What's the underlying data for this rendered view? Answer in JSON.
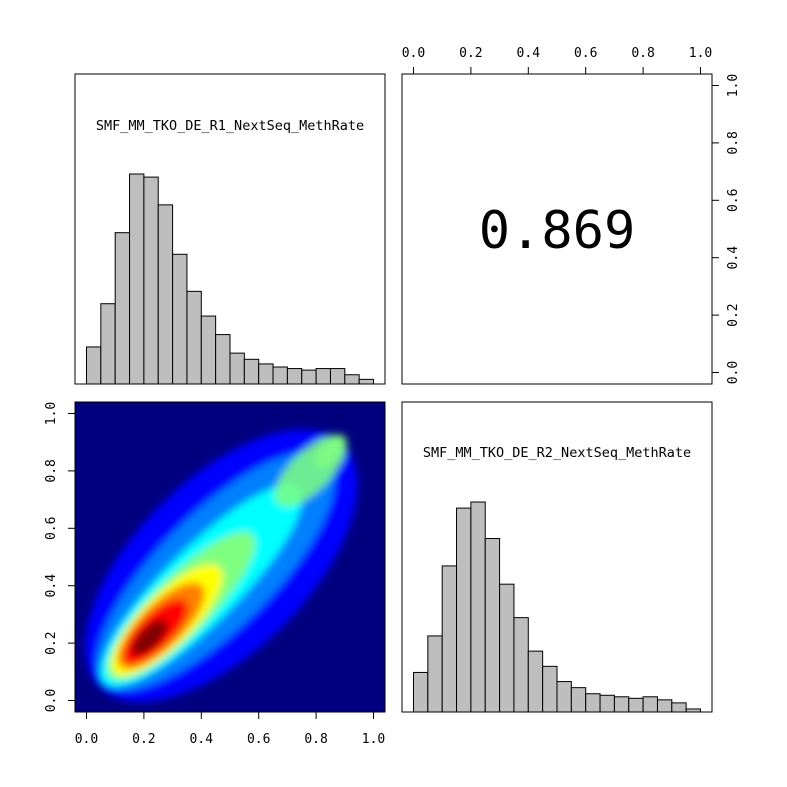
{
  "chart_data": [
    {
      "type": "histogram",
      "panel": "top-left",
      "label": "SMF_MM_TKO_DE_R1_NextSeq_MethRate",
      "bins": [
        0.0,
        0.05,
        0.1,
        0.15,
        0.2,
        0.25,
        0.3,
        0.35,
        0.4,
        0.45,
        0.5,
        0.55,
        0.6,
        0.65,
        0.7,
        0.75,
        0.8,
        0.85,
        0.9,
        0.95,
        1.0
      ],
      "values": [
        0.12,
        0.26,
        0.49,
        0.68,
        0.67,
        0.58,
        0.42,
        0.3,
        0.22,
        0.16,
        0.1,
        0.08,
        0.065,
        0.055,
        0.05,
        0.045,
        0.05,
        0.05,
        0.03,
        0.015
      ]
    },
    {
      "type": "text",
      "panel": "top-right",
      "correlation": "0.869",
      "xticks": [
        "0.0",
        "0.2",
        "0.4",
        "0.6",
        "0.8",
        "1.0"
      ],
      "yticks": [
        "0.0",
        "0.2",
        "0.4",
        "0.6",
        "0.8",
        "1.0"
      ]
    },
    {
      "type": "heatmap",
      "panel": "bottom-left",
      "colormap": [
        "#00007f",
        "#0000ff",
        "#007fff",
        "#00ffff",
        "#7fff7f",
        "#ffff00",
        "#ff7f00",
        "#ff0000",
        "#7f0000"
      ],
      "xticks": [
        "0.0",
        "0.2",
        "0.4",
        "0.6",
        "0.8",
        "1.0"
      ],
      "yticks": [
        "0.0",
        "0.2",
        "0.4",
        "0.6",
        "0.8",
        "1.0"
      ],
      "xlim": [
        -0.04,
        1.04
      ],
      "ylim": [
        -0.04,
        1.04
      ]
    },
    {
      "type": "histogram",
      "panel": "bottom-right",
      "label": "SMF_MM_TKO_DE_R2_NextSeq_MethRate",
      "bins": [
        0.0,
        0.05,
        0.1,
        0.15,
        0.2,
        0.25,
        0.3,
        0.35,
        0.4,
        0.45,
        0.5,
        0.55,
        0.6,
        0.65,
        0.7,
        0.75,
        0.8,
        0.85,
        0.9,
        0.95,
        1.0
      ],
      "values": [
        0.13,
        0.25,
        0.48,
        0.67,
        0.69,
        0.57,
        0.42,
        0.31,
        0.2,
        0.15,
        0.1,
        0.08,
        0.06,
        0.055,
        0.05,
        0.045,
        0.05,
        0.04,
        0.03,
        0.01
      ]
    }
  ]
}
